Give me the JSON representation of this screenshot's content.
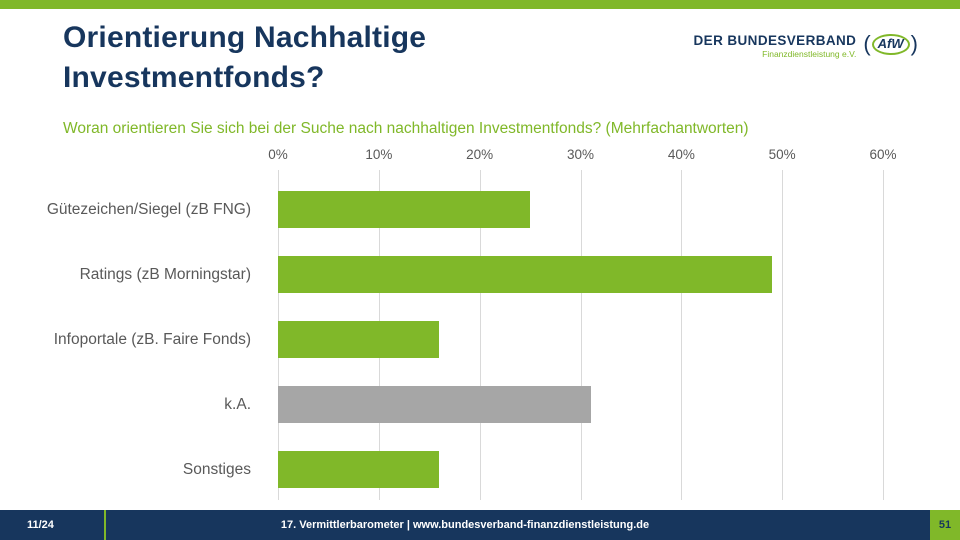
{
  "colors": {
    "green": "#80B829",
    "navy": "#17365D",
    "gray_bar": "#A6A6A6",
    "label_gray": "#595959",
    "grid": "#D9D9D9",
    "white": "#FFFFFF"
  },
  "header": {
    "title_line1": "Orientierung Nachhaltige",
    "title_line2": "Investmentfonds?",
    "subtitle": "Woran orientieren Sie sich bei der Suche nach nachhaltigen Investmentfonds? (Mehrfachantworten)"
  },
  "logo": {
    "name": "DER BUNDESVERBAND",
    "sub": "Finanzdienstleistung e.V.",
    "badge": "AfW",
    "paren_open": "(",
    "paren_close": ")"
  },
  "chart_data": {
    "type": "bar",
    "orientation": "horizontal",
    "title": "Woran orientieren Sie sich bei der Suche nach nachhaltigen Investmentfonds? (Mehrfachantworten)",
    "categories": [
      "Gütezeichen/Siegel (zB FNG)",
      "Ratings (zB Morningstar)",
      "Infoportale (zB. Faire Fonds)",
      "k.A.",
      "Sonstiges"
    ],
    "values": [
      25,
      49,
      16,
      31,
      16
    ],
    "unit": "%",
    "bar_colors": [
      "#80B829",
      "#80B829",
      "#80B829",
      "#A6A6A6",
      "#80B829"
    ],
    "xlim": [
      0,
      60
    ],
    "xtick_step": 10,
    "xticks": [
      "0%",
      "10%",
      "20%",
      "30%",
      "40%",
      "50%",
      "60%"
    ],
    "grid": true,
    "legend": "none"
  },
  "footer": {
    "date": "11/24",
    "source": "17. Vermittlerbarometer | www.bundesverband-finanzdienstleistung.de",
    "page": "51"
  }
}
